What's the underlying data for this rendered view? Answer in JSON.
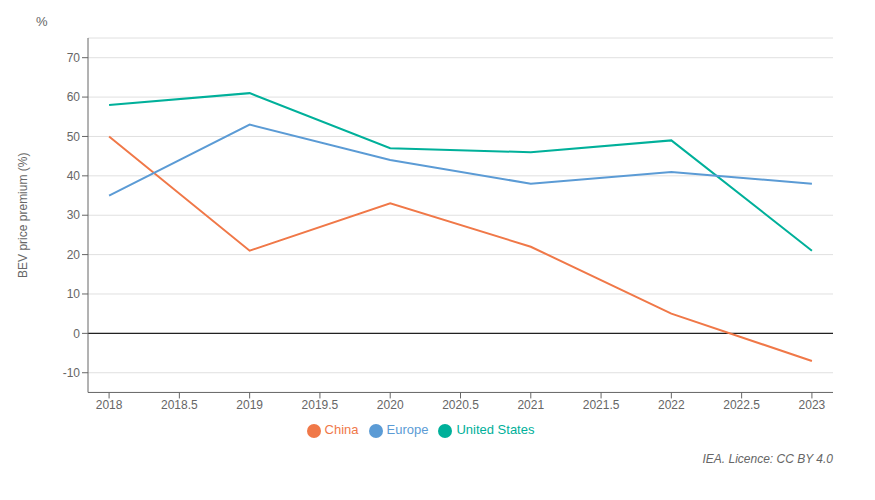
{
  "chart_data": {
    "type": "line",
    "ylabel": "BEV price premium (%)",
    "annotations": [
      "%",
      "IEA. Licence: CC BY 4.0"
    ],
    "x": [
      2018,
      2019,
      2020,
      2021,
      2022,
      2023
    ],
    "series": [
      {
        "name": "United States",
        "color": "#00b09a",
        "values": [
          58,
          61,
          47,
          46,
          49,
          21
        ]
      },
      {
        "name": "China",
        "color": "#f07848",
        "values": [
          50,
          21,
          33,
          22,
          5,
          -7
        ]
      },
      {
        "name": "Europe",
        "color": "#5b9bd5",
        "values": [
          35,
          53,
          44,
          38,
          41,
          38
        ]
      }
    ],
    "xlim": [
      2017.85,
      2023.15
    ],
    "xticks": [
      2018,
      2018.5,
      2019,
      2019.5,
      2020,
      2020.5,
      2021,
      2021.5,
      2022,
      2022.5,
      2023
    ],
    "ylim": [
      -15,
      75
    ],
    "yticks": [
      -10,
      0,
      10,
      20,
      30,
      40,
      50,
      60,
      70
    ],
    "hlines": [
      0
    ],
    "grid": true,
    "legend": "bottom"
  }
}
